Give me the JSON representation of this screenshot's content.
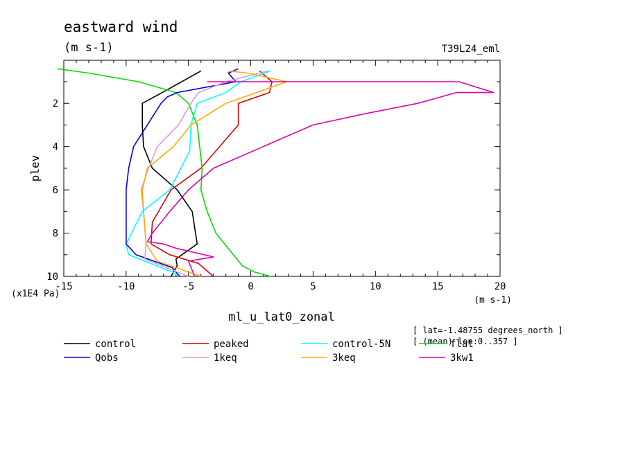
{
  "chart_data": {
    "type": "line",
    "title": "eastward wind",
    "subtitle": "(m s-1)",
    "run_label": "T39L24_eml",
    "xlabel": "ml_u_lat0_zonal",
    "x_units": "(m s-1)",
    "ylabel": "plev",
    "y_scale_label": "(x1E4 Pa)",
    "xlim": [
      -15,
      20
    ],
    "ylim": [
      10,
      0.4
    ],
    "x_ticks": [
      -15,
      -10,
      -5,
      0,
      5,
      10,
      15,
      20
    ],
    "y_ticks": [
      2,
      4,
      6,
      8,
      10
    ],
    "grid": false,
    "legend_position": "bottom",
    "info_lines": [
      "[ lat=-1.48755 degrees_north ]",
      "[ (mean) lon:0..357 ]"
    ],
    "series": [
      {
        "name": "control",
        "color": "#000000",
        "x": [
          -6.4,
          -5.9,
          -6.0,
          -4.3,
          -4.7,
          -5.9,
          -7.9,
          -8.6,
          -8.7,
          -8.7,
          -7.1,
          -4.0
        ],
        "y": [
          10,
          9.5,
          9.2,
          8.5,
          7,
          6,
          5,
          4,
          3,
          2,
          1.5,
          0.5
        ]
      },
      {
        "name": "peaked",
        "color": "#dd0000",
        "x": [
          -3,
          -4.2,
          -6.5,
          -8,
          -7.9,
          -6.4,
          -4,
          -1,
          -1,
          1.5,
          1.7,
          0.7
        ],
        "y": [
          10,
          9.4,
          9.0,
          8.5,
          7.5,
          6,
          5,
          3,
          2,
          1.5,
          1,
          0.5
        ]
      },
      {
        "name": "control-5N",
        "color": "#00ffff",
        "x": [
          -5.8,
          -6.3,
          -9.8,
          -10,
          -8.7,
          -6.5,
          -4.9,
          -4.8,
          -4.3,
          -2,
          -0.8,
          1.6
        ],
        "y": [
          10,
          9.8,
          9.0,
          8.5,
          7,
          6,
          4.2,
          3,
          2,
          1.5,
          1,
          0.5
        ]
      },
      {
        "name": "flat",
        "color": "#00dd00",
        "x": [
          1.6,
          0.3,
          -0.7,
          -1.4,
          -2.8,
          -3.5,
          -4,
          -3.9,
          -4.3,
          -5,
          -6,
          -9,
          -13,
          -15.5
        ],
        "y": [
          10,
          9.8,
          9.5,
          9,
          8,
          7,
          6,
          5,
          3,
          2,
          1.5,
          1,
          0.6,
          0.4
        ]
      },
      {
        "name": "Qobs",
        "color": "#0000dd",
        "x": [
          -5.7,
          -6.3,
          -9.2,
          -10,
          -10,
          -9.8,
          -9.4,
          -8.3,
          -7.2,
          -6.7,
          -5.9,
          -1.2,
          -1.8,
          -1.0
        ],
        "y": [
          10,
          9.6,
          9.0,
          8.5,
          6,
          5,
          4,
          3,
          2,
          1.7,
          1.5,
          1,
          0.6,
          0.4
        ]
      },
      {
        "name": "1keq",
        "color": "#dd99dd",
        "x": [
          -5.0,
          -8.5,
          -8.4,
          -8.6,
          -8.8,
          -8.2,
          -7.5,
          -5.8,
          -4.8,
          -4.2,
          -2.0,
          1.4
        ],
        "y": [
          10,
          9.2,
          8.5,
          7,
          6,
          5,
          4,
          3,
          2,
          1.5,
          1,
          0.5
        ]
      },
      {
        "name": "3keq",
        "color": "#ffaa00",
        "x": [
          -4,
          -7.5,
          -8.4,
          -8.6,
          -8.7,
          -8.3,
          -6.2,
          -4.8,
          -2,
          2.9,
          -0.2,
          -1.8
        ],
        "y": [
          10,
          9.3,
          8.5,
          7,
          6,
          5,
          4,
          3,
          2,
          1,
          0.6,
          0.5
        ]
      },
      {
        "name": "3kw1",
        "color": "#dd00aa",
        "x": [
          -4.5,
          -5,
          -3,
          -6,
          -7,
          -8.3,
          -7.9,
          -6.5,
          -5,
          -3,
          1,
          5,
          9,
          13.4,
          16.5,
          19.5,
          16.7,
          -3.5
        ],
        "y": [
          10,
          9.3,
          9.1,
          8.7,
          8.5,
          8.4,
          8.0,
          7,
          6,
          5,
          4,
          3,
          2.5,
          2,
          1.5,
          1.5,
          1,
          1
        ]
      }
    ]
  }
}
